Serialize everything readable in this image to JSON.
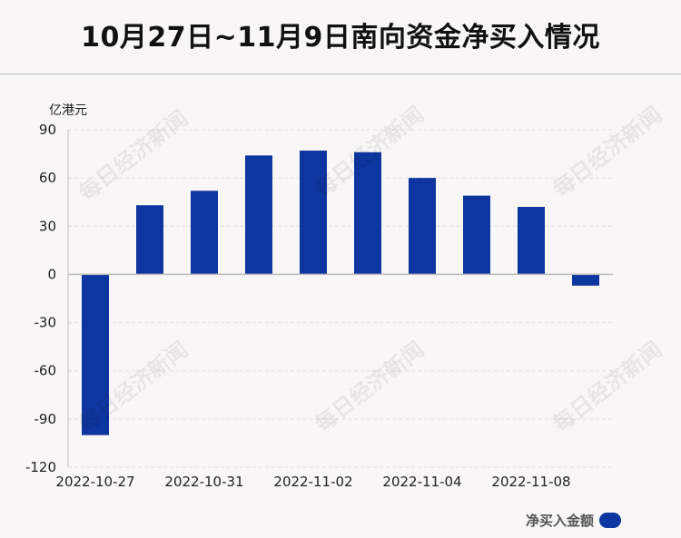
{
  "title": "10月27日~11月9日南向资金净买入情况",
  "watermark_text": "每日经济新闻",
  "legend": {
    "label": "净买入金额"
  },
  "colors": {
    "bar": "#0e36a0",
    "axis": "#bbbbbb",
    "grid": "#e2e2e2"
  },
  "chart_data": {
    "type": "bar",
    "title": "10月27日~11月9日南向资金净买入情况",
    "ylabel": "亿港元",
    "xlabel": "",
    "ylim": [
      -120,
      90
    ],
    "yticks": [
      90,
      60,
      30,
      0,
      -30,
      -60,
      -90,
      -120
    ],
    "grid": true,
    "legend_position": "bottom-right",
    "categories": [
      "2022-10-27",
      "2022-10-28",
      "2022-10-31",
      "2022-11-01",
      "2022-11-02",
      "2022-11-03",
      "2022-11-04",
      "2022-11-07",
      "2022-11-08",
      "2022-11-09"
    ],
    "xtick_labels": [
      "2022-10-27",
      "2022-10-31",
      "2022-11-02",
      "2022-11-04",
      "2022-11-08"
    ],
    "series": [
      {
        "name": "净买入金额",
        "values": [
          -100,
          43,
          52,
          74,
          77,
          76,
          60,
          49,
          42,
          -7
        ]
      }
    ]
  }
}
